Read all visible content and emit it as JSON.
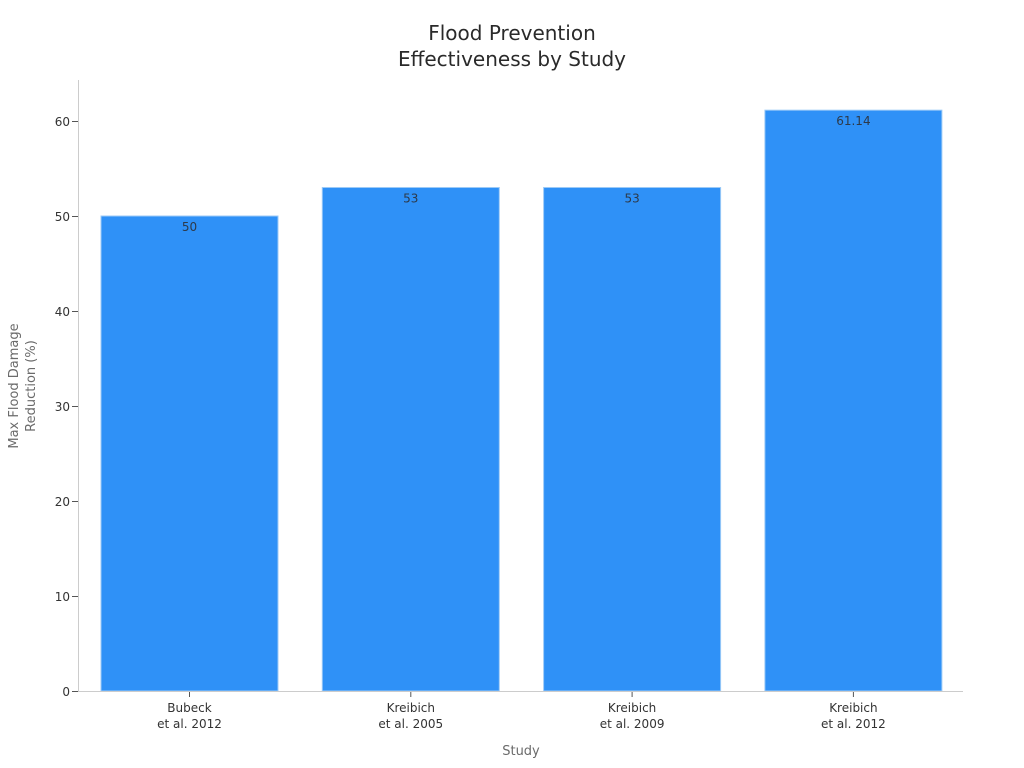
{
  "chart_data": {
    "type": "bar",
    "title": "Flood Prevention\nEffectiveness by Study",
    "title_lines": [
      "Flood Prevention",
      "Effectiveness by Study"
    ],
    "xlabel": "Study",
    "ylabel": "Max Flood Damage\nReduction (%)",
    "ylabel_lines": [
      "Max Flood Damage",
      "Reduction (%)"
    ],
    "categories": [
      "Bubeck\net al. 2012",
      "Kreibich\net al. 2005",
      "Kreibich\net al. 2009",
      "Kreibich\net al. 2012"
    ],
    "category_lines": [
      [
        "Bubeck",
        "et al. 2012"
      ],
      [
        "Kreibich",
        "et al. 2005"
      ],
      [
        "Kreibich",
        "et al. 2009"
      ],
      [
        "Kreibich",
        "et al. 2012"
      ]
    ],
    "values": [
      50,
      53,
      53,
      61.14
    ],
    "value_labels": [
      "50",
      "53",
      "53",
      "61.14"
    ],
    "ylim": [
      0,
      64.3
    ],
    "yticks": [
      0,
      10,
      20,
      30,
      40,
      50,
      60
    ],
    "grid": false,
    "legend": null,
    "colors": {
      "bar": "#2f91f7",
      "bar_edge": "#9ccaf7",
      "axis": "#cccccc",
      "text": "#333333",
      "label": "#6b6b6b"
    }
  }
}
